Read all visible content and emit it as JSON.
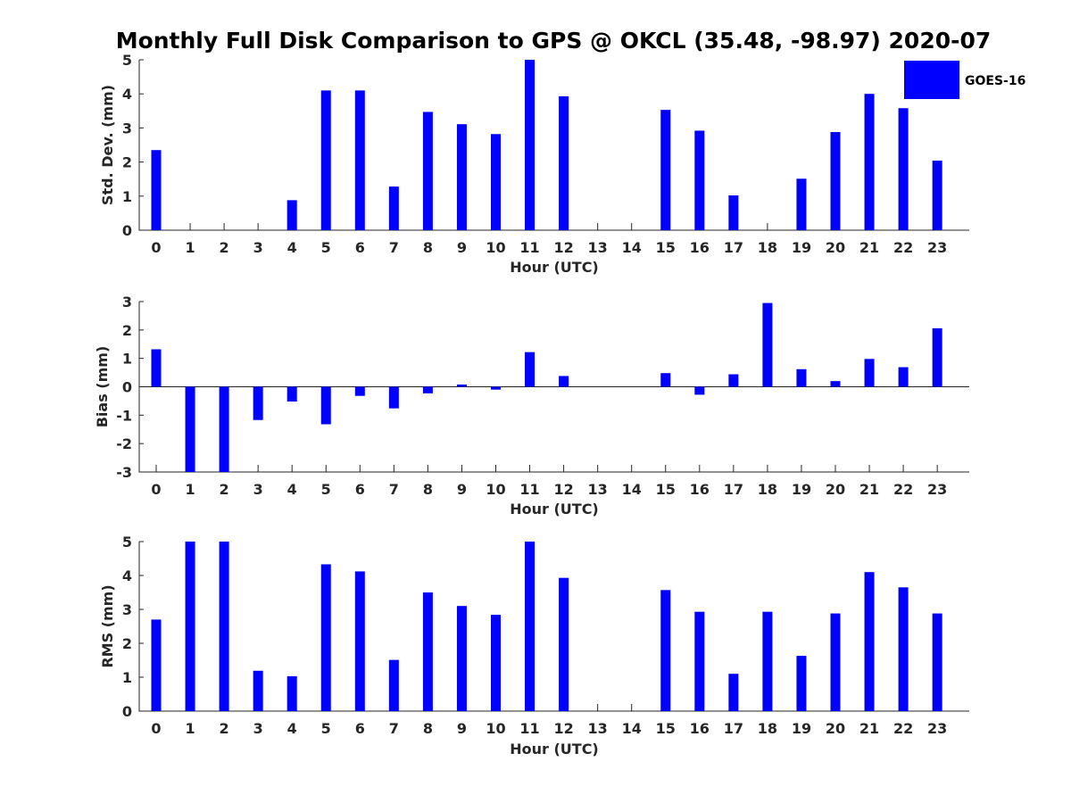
{
  "title": "Monthly Full Disk Comparison to GPS @ OKCL (35.48, -98.97) 2020-07",
  "legend": {
    "label": "GOES-16",
    "color": "#0000ff"
  },
  "chart_data": [
    {
      "type": "bar",
      "xlabel": "Hour (UTC)",
      "ylabel": "Std. Dev. (mm)",
      "ylim": [
        0,
        5
      ],
      "yticks": [
        "0",
        "1",
        "2",
        "3",
        "4",
        "5"
      ],
      "categories": [
        "0",
        "1",
        "2",
        "3",
        "4",
        "5",
        "6",
        "7",
        "8",
        "9",
        "10",
        "11",
        "12",
        "13",
        "14",
        "15",
        "16",
        "17",
        "18",
        "19",
        "20",
        "21",
        "22",
        "23"
      ],
      "series": [
        {
          "name": "GOES-16",
          "values": [
            2.35,
            0,
            0,
            0,
            0.88,
            4.1,
            4.1,
            1.28,
            3.47,
            3.11,
            2.82,
            5.0,
            3.93,
            0,
            0,
            3.53,
            2.92,
            1.02,
            0,
            1.51,
            2.88,
            4.0,
            3.58,
            2.04
          ]
        }
      ],
      "grid": false,
      "legend_position": "top-right"
    },
    {
      "type": "bar",
      "xlabel": "Hour (UTC)",
      "ylabel": "Bias (mm)",
      "ylim": [
        -3,
        3
      ],
      "yticks": [
        "-3",
        "-2",
        "-1",
        "0",
        "1",
        "2",
        "3"
      ],
      "categories": [
        "0",
        "1",
        "2",
        "3",
        "4",
        "5",
        "6",
        "7",
        "8",
        "9",
        "10",
        "11",
        "12",
        "13",
        "14",
        "15",
        "16",
        "17",
        "18",
        "19",
        "20",
        "21",
        "22",
        "23"
      ],
      "series": [
        {
          "name": "GOES-16",
          "values": [
            1.32,
            -3.0,
            -3.0,
            -1.17,
            -0.52,
            -1.32,
            -0.32,
            -0.76,
            -0.23,
            0.08,
            -0.1,
            1.22,
            0.38,
            0,
            0,
            0.48,
            -0.28,
            0.44,
            2.95,
            0.62,
            0.2,
            0.98,
            0.69,
            2.06
          ]
        }
      ],
      "grid": false
    },
    {
      "type": "bar",
      "xlabel": "Hour (UTC)",
      "ylabel": "RMS (mm)",
      "ylim": [
        0,
        5
      ],
      "yticks": [
        "0",
        "1",
        "2",
        "3",
        "4",
        "5"
      ],
      "categories": [
        "0",
        "1",
        "2",
        "3",
        "4",
        "5",
        "6",
        "7",
        "8",
        "9",
        "10",
        "11",
        "12",
        "13",
        "14",
        "15",
        "16",
        "17",
        "18",
        "19",
        "20",
        "21",
        "22",
        "23"
      ],
      "series": [
        {
          "name": "GOES-16",
          "values": [
            2.7,
            5.0,
            5.0,
            1.19,
            1.03,
            4.33,
            4.12,
            1.51,
            3.5,
            3.1,
            2.84,
            5.0,
            3.93,
            0,
            0,
            3.57,
            2.93,
            1.1,
            2.93,
            1.63,
            2.88,
            4.1,
            3.65,
            2.88
          ]
        }
      ],
      "grid": false
    }
  ]
}
